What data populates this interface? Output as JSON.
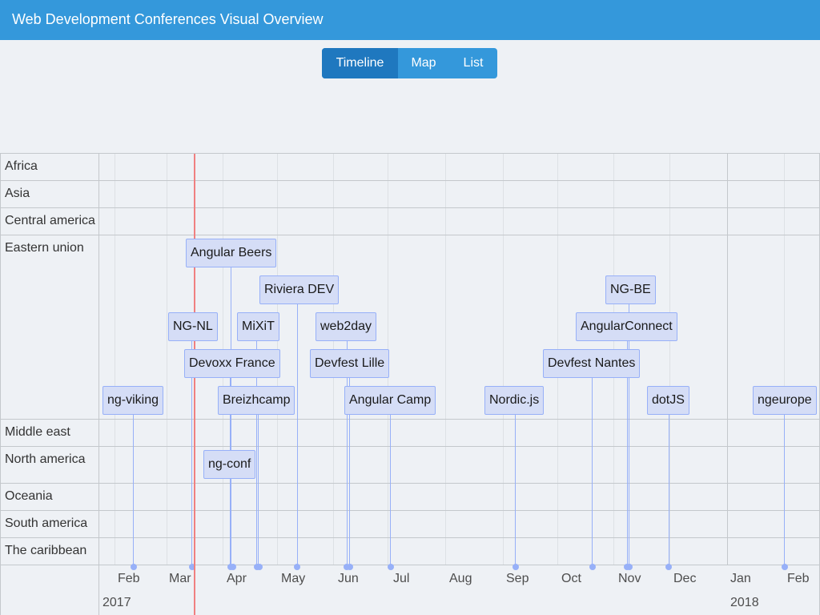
{
  "app": {
    "title": "Web Development Conferences Visual Overview"
  },
  "view_switch": {
    "timeline": "Timeline",
    "map": "Map",
    "list": "List",
    "active": "Timeline"
  },
  "groups": [
    "Africa",
    "Asia",
    "Central america",
    "Eastern union",
    "Middle east",
    "North america",
    "Oceania",
    "South america",
    "The caribbean"
  ],
  "axis": {
    "months": [
      "Feb",
      "Mar",
      "Apr",
      "May",
      "Jun",
      "Jul",
      "Aug",
      "Sep",
      "Oct",
      "Nov",
      "Dec",
      "Jan",
      "Feb"
    ],
    "years": [
      "2017",
      "2018"
    ]
  },
  "events": [
    {
      "name": "ng-viking",
      "region": "Eastern union"
    },
    {
      "name": "NG-NL",
      "region": "Eastern union"
    },
    {
      "name": "Angular Beers",
      "region": "Eastern union"
    },
    {
      "name": "Devoxx France",
      "region": "Eastern union"
    },
    {
      "name": "ng-conf",
      "region": "North america"
    },
    {
      "name": "MiXiT",
      "region": "Eastern union"
    },
    {
      "name": "Breizhcamp",
      "region": "Eastern union"
    },
    {
      "name": "Riviera DEV",
      "region": "Eastern union"
    },
    {
      "name": "web2day",
      "region": "Eastern union"
    },
    {
      "name": "Devfest Lille",
      "region": "Eastern union"
    },
    {
      "name": "Angular Camp",
      "region": "Eastern union"
    },
    {
      "name": "Nordic.js",
      "region": "Eastern union"
    },
    {
      "name": "Devfest Nantes",
      "region": "Eastern union"
    },
    {
      "name": "NG-BE",
      "region": "Eastern union"
    },
    {
      "name": "AngularConnect",
      "region": "Eastern union"
    },
    {
      "name": "dotJS",
      "region": "Eastern union"
    },
    {
      "name": "ngeurope",
      "region": "Eastern union"
    }
  ],
  "colors": {
    "header": "#3498db",
    "active_button": "#1f78bf",
    "item_fill": "#d5ddf6",
    "item_border": "#97b0f8",
    "current_time": "#f08080"
  }
}
